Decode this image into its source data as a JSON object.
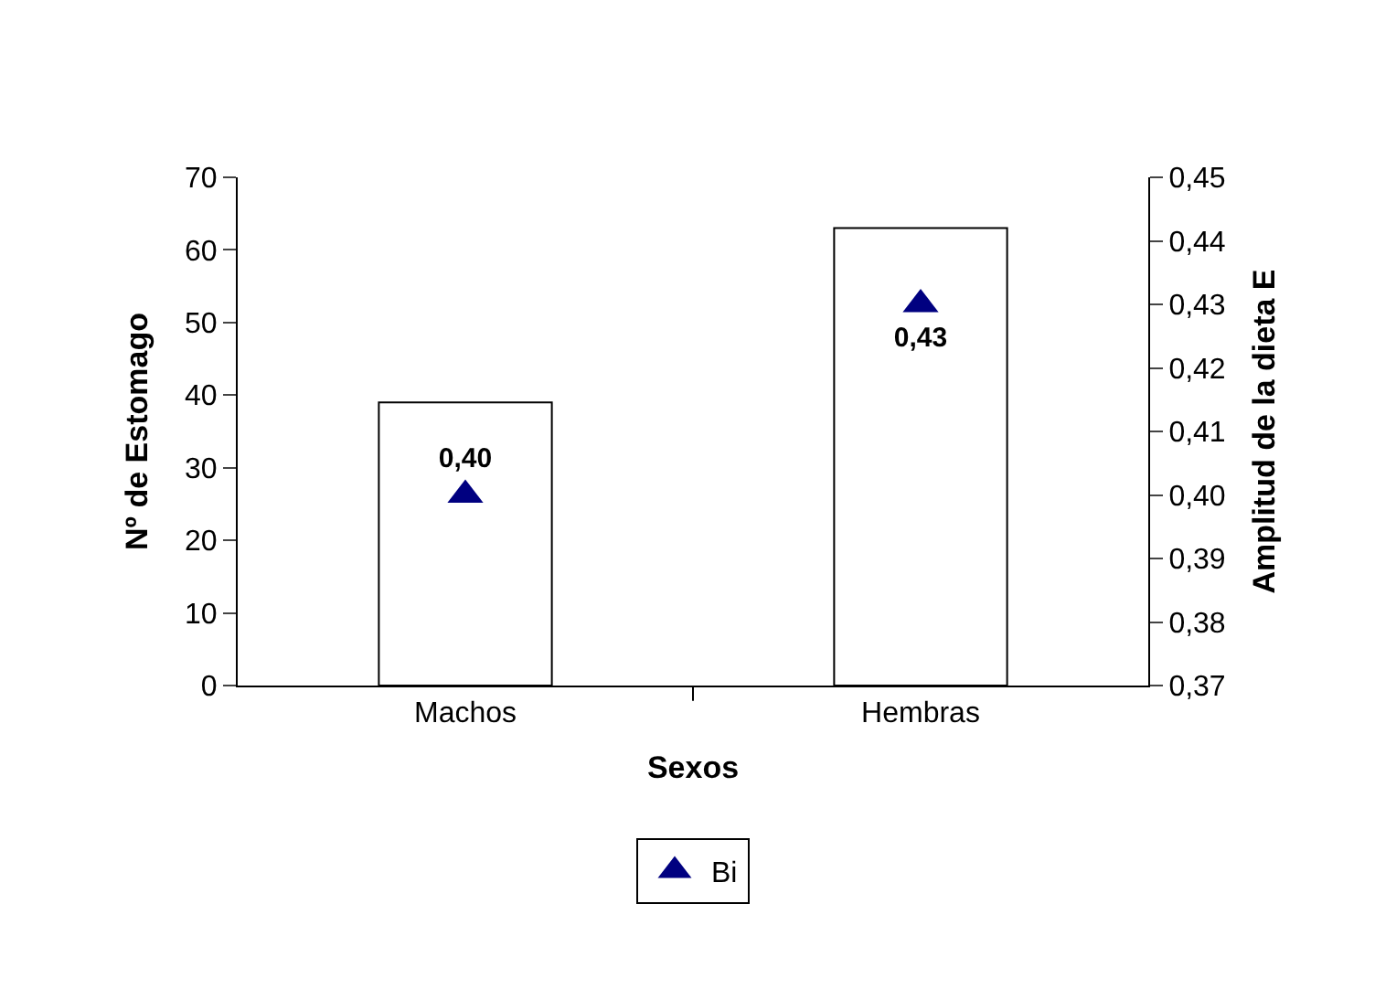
{
  "chart_data": {
    "type": "bar",
    "categories": [
      "Machos",
      "Hembras"
    ],
    "xlabel": "Sexos",
    "ylabel": "Nº de Estomago",
    "y2label": "Amplitud de la dieta E",
    "series": [
      {
        "color": "#ffffff",
        "values": [
          39,
          63
        ]
      },
      {
        "type": "scatter",
        "name": "Bi",
        "color": "#000080",
        "axis": "y2",
        "marker": "triangle",
        "values": [
          0.4,
          0.43
        ],
        "value_labels": [
          "0,40",
          "0,43"
        ]
      }
    ],
    "ylim": [
      0,
      70
    ],
    "yticks": [
      0,
      10,
      20,
      30,
      40,
      50,
      60,
      70
    ],
    "y2lim": [
      0.37,
      0.45
    ],
    "y2ticks": [
      {
        "value": 0.37,
        "label": "0,37"
      },
      {
        "value": 0.38,
        "label": "0,38"
      },
      {
        "value": 0.39,
        "label": "0,39"
      },
      {
        "value": 0.4,
        "label": "0,40"
      },
      {
        "value": 0.41,
        "label": "0,41"
      },
      {
        "value": 0.42,
        "label": "0,42"
      },
      {
        "value": 0.43,
        "label": "0,43"
      },
      {
        "value": 0.44,
        "label": "0,44"
      },
      {
        "value": 0.45,
        "label": "0,45"
      }
    ],
    "legend": "bottom"
  }
}
